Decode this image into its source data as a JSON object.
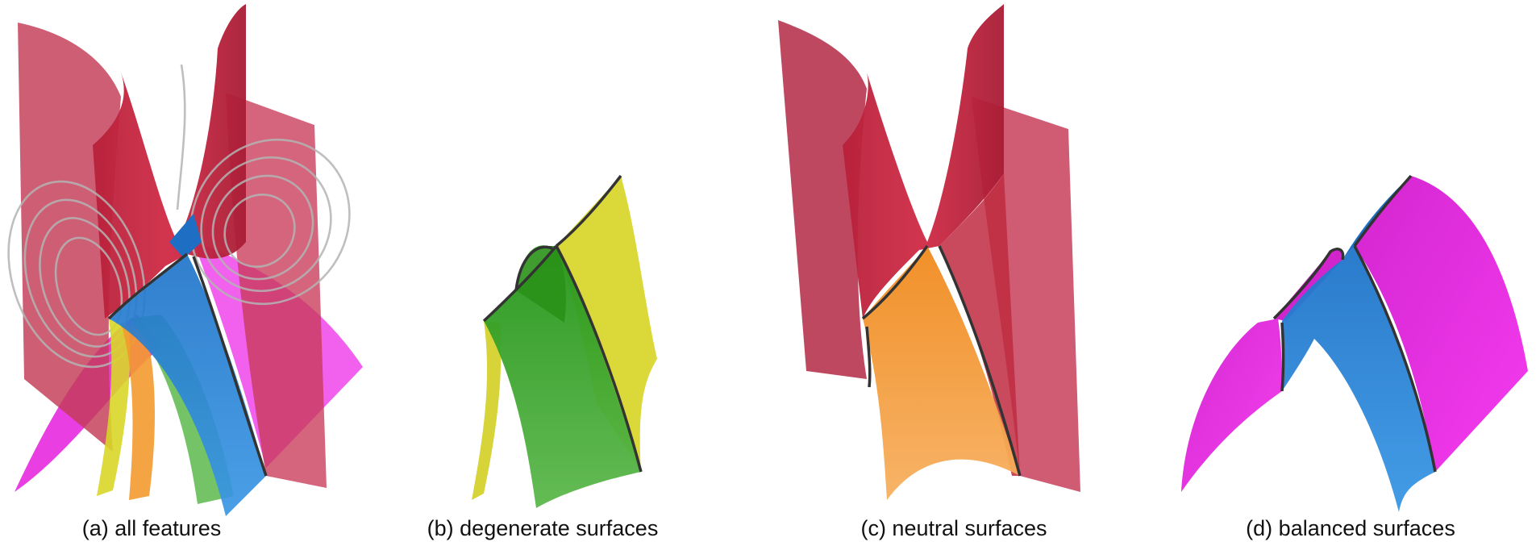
{
  "panels": [
    {
      "id": "a",
      "caption": "(a) all features"
    },
    {
      "id": "b",
      "caption": "(b) degenerate surfaces"
    },
    {
      "id": "c",
      "caption": "(c) neutral surfaces"
    },
    {
      "id": "d",
      "caption": "(d) balanced surfaces"
    }
  ],
  "colors": {
    "degenerate_yellow": "#d8d628",
    "degenerate_green": "#2f9e1e",
    "neutral_orange": "#f39a2e",
    "neutral_red": "#c2263f",
    "balanced_blue": "#2c86d6",
    "balanced_magenta": "#ee2ae8",
    "streamline_gray": "#b4b4b4",
    "curve_dark": "#333333"
  }
}
